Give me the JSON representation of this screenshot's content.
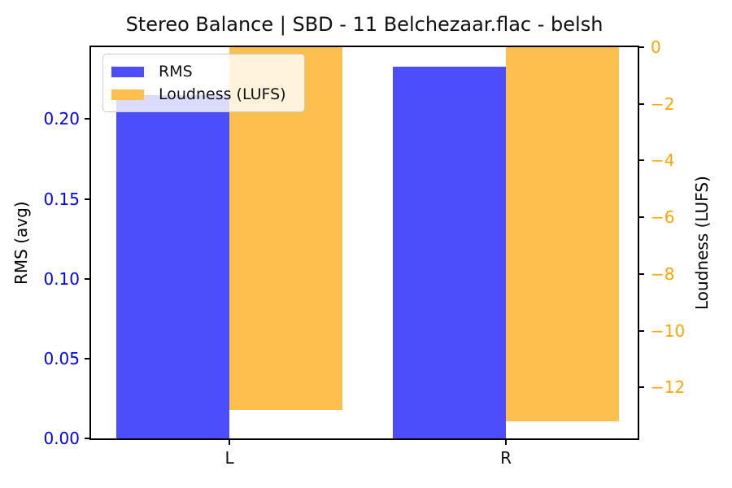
{
  "chart_data": {
    "type": "bar",
    "title": "Stereo Balance | SBD - 11 Belchezaar.flac - belsh",
    "categories": [
      "L",
      "R"
    ],
    "series": [
      {
        "name": "RMS",
        "axis": "left",
        "color": "#4c4dfb",
        "values": [
          0.215,
          0.233
        ]
      },
      {
        "name": "Loudness (LUFS)",
        "axis": "right",
        "color": "#fec04d",
        "values": [
          -12.8,
          -13.2
        ]
      }
    ],
    "left_axis": {
      "label": "RMS (avg)",
      "color": "#0202ee",
      "ylim": [
        0,
        0.245
      ],
      "ticks": [
        {
          "value": 0.0,
          "label": "0.00"
        },
        {
          "value": 0.05,
          "label": "0.05"
        },
        {
          "value": 0.1,
          "label": "0.10"
        },
        {
          "value": 0.15,
          "label": "0.15"
        },
        {
          "value": 0.2,
          "label": "0.20"
        }
      ]
    },
    "right_axis": {
      "label": "Loudness (LUFS)",
      "color": "#ffa500",
      "ylim": [
        -13.8,
        0
      ],
      "ticks": [
        {
          "value": 0,
          "label": "0"
        },
        {
          "value": -2,
          "label": "−2"
        },
        {
          "value": -4,
          "label": "−4"
        },
        {
          "value": -6,
          "label": "−6"
        },
        {
          "value": -8,
          "label": "−8"
        },
        {
          "value": -10,
          "label": "−10"
        },
        {
          "value": -12,
          "label": "−12"
        }
      ]
    },
    "legend": {
      "position": "upper-left",
      "items": [
        "RMS",
        "Loudness (LUFS)"
      ]
    },
    "grid": false
  }
}
